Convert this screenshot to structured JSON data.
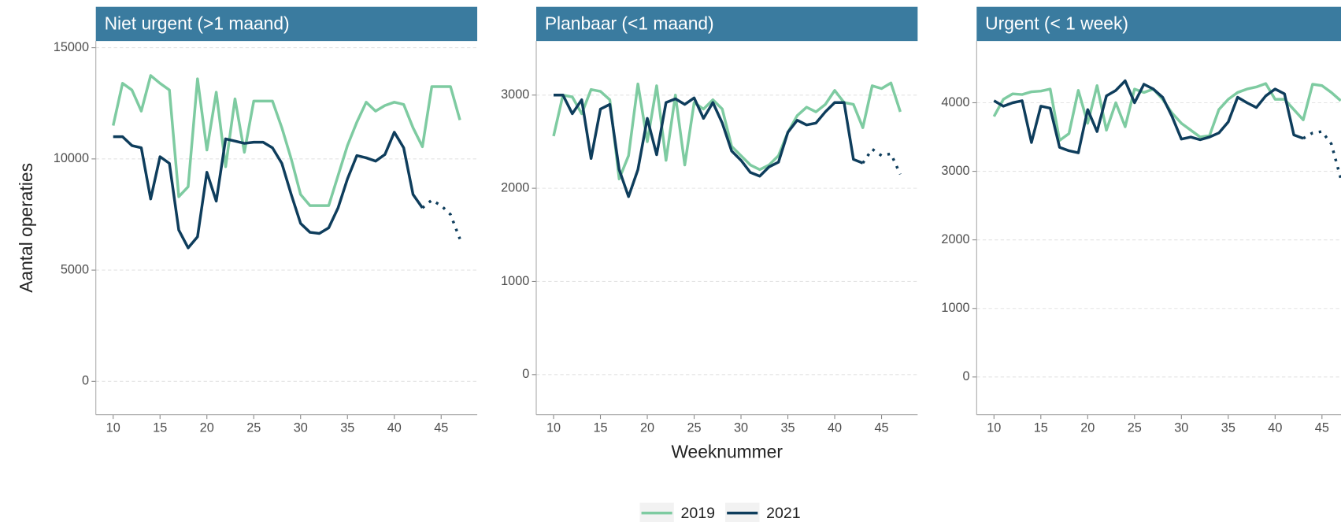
{
  "chart_data": [
    {
      "type": "line",
      "title": "Niet urgent (>1 maand)",
      "ylabel": "Aantal operaties",
      "x": [
        10,
        11,
        12,
        13,
        14,
        15,
        16,
        17,
        18,
        19,
        20,
        21,
        22,
        23,
        24,
        25,
        26,
        27,
        28,
        29,
        30,
        31,
        32,
        33,
        34,
        35,
        36,
        37,
        38,
        39,
        40,
        41,
        42,
        43,
        44,
        45,
        46,
        47
      ],
      "xlim": [
        8.15,
        48.85
      ],
      "xticks": [
        10,
        15,
        20,
        25,
        30,
        35,
        40,
        45
      ],
      "ylim": [
        -1500,
        15300
      ],
      "yticks": [
        0,
        5000,
        10000,
        15000
      ],
      "grid": true,
      "legend": "bottom",
      "series": [
        {
          "name": "2019",
          "color": "#7ecba1",
          "values": [
            11500,
            13400,
            13100,
            12150,
            13750,
            13400,
            13100,
            8300,
            8750,
            13600,
            10400,
            13000,
            9650,
            12700,
            10300,
            12600,
            12600,
            12600,
            11400,
            10000,
            8400,
            7900,
            7900,
            7900,
            9250,
            10600,
            11650,
            12550,
            12150,
            12400,
            12550,
            12450,
            11400,
            10550,
            13250,
            13250,
            13250,
            11750
          ]
        },
        {
          "name": "2021",
          "color": "#0e3d5c",
          "values": [
            11000,
            11000,
            10600,
            10500,
            8200,
            10100,
            9800,
            6800,
            6000,
            6500,
            9400,
            8100,
            10900,
            10800,
            10700,
            10750,
            10750,
            10500,
            9800,
            8400,
            7100,
            6700,
            6650,
            6900,
            7800,
            9100,
            10150,
            10050,
            9900,
            10200,
            11200,
            10500,
            8400,
            7800,
            null,
            null,
            null,
            null
          ],
          "projected_values": [
            null,
            null,
            null,
            null,
            null,
            null,
            null,
            null,
            null,
            null,
            null,
            null,
            null,
            null,
            null,
            null,
            null,
            null,
            null,
            null,
            null,
            null,
            null,
            null,
            null,
            null,
            null,
            null,
            null,
            null,
            null,
            null,
            null,
            7800,
            8150,
            7900,
            7500,
            6400
          ]
        }
      ]
    },
    {
      "type": "line",
      "title": "Planbaar (<1 maand)",
      "xlabel": "Weeknummer",
      "x": [
        10,
        11,
        12,
        13,
        14,
        15,
        16,
        17,
        18,
        19,
        20,
        21,
        22,
        23,
        24,
        25,
        26,
        27,
        28,
        29,
        30,
        31,
        32,
        33,
        34,
        35,
        36,
        37,
        38,
        39,
        40,
        41,
        42,
        43,
        44,
        45,
        46,
        47
      ],
      "xlim": [
        8.15,
        48.85
      ],
      "xticks": [
        10,
        15,
        20,
        25,
        30,
        35,
        40,
        45
      ],
      "ylim": [
        -430,
        3580
      ],
      "yticks": [
        0,
        1000,
        2000,
        3000
      ],
      "grid": true,
      "series": [
        {
          "color": "#7ecba1",
          "values": [
            2560,
            3000,
            2980,
            2800,
            3060,
            3040,
            2950,
            2100,
            2350,
            3120,
            2500,
            3100,
            2300,
            3000,
            2250,
            2920,
            2850,
            2950,
            2850,
            2450,
            2350,
            2250,
            2200,
            2250,
            2350,
            2600,
            2780,
            2870,
            2820,
            2900,
            3050,
            2920,
            2900,
            2650,
            3100,
            3070,
            3130,
            2820
          ]
        },
        {
          "color": "#0e3d5c",
          "values": [
            3000,
            3000,
            2800,
            2950,
            2320,
            2850,
            2900,
            2200,
            1910,
            2200,
            2750,
            2360,
            2920,
            2960,
            2900,
            2970,
            2750,
            2920,
            2700,
            2400,
            2300,
            2170,
            2130,
            2230,
            2280,
            2600,
            2730,
            2680,
            2700,
            2820,
            2920,
            2920,
            2310,
            2270,
            null,
            null,
            null,
            null
          ],
          "projected_values": [
            null,
            null,
            null,
            null,
            null,
            null,
            null,
            null,
            null,
            null,
            null,
            null,
            null,
            null,
            null,
            null,
            null,
            null,
            null,
            null,
            null,
            null,
            null,
            null,
            null,
            null,
            null,
            null,
            null,
            null,
            null,
            null,
            null,
            2270,
            2420,
            2350,
            2370,
            2150
          ]
        }
      ]
    },
    {
      "type": "line",
      "title": "Urgent (< 1 week)",
      "x": [
        10,
        11,
        12,
        13,
        14,
        15,
        16,
        17,
        18,
        19,
        20,
        21,
        22,
        23,
        24,
        25,
        26,
        27,
        28,
        29,
        30,
        31,
        32,
        33,
        34,
        35,
        36,
        37,
        38,
        39,
        40,
        41,
        42,
        43,
        44,
        45,
        46,
        47
      ],
      "xlim": [
        8.15,
        48.85
      ],
      "xticks": [
        10,
        15,
        20,
        25,
        30,
        35,
        40,
        45
      ],
      "ylim": [
        -550,
        4900
      ],
      "yticks": [
        0,
        1000,
        2000,
        3000,
        4000
      ],
      "grid": true,
      "series": [
        {
          "color": "#7ecba1",
          "values": [
            3800,
            4050,
            4130,
            4120,
            4160,
            4170,
            4200,
            3450,
            3550,
            4180,
            3700,
            4250,
            3600,
            4000,
            3650,
            4200,
            4150,
            4200,
            4050,
            3850,
            3700,
            3600,
            3500,
            3520,
            3900,
            4050,
            4150,
            4200,
            4230,
            4280,
            4050,
            4050,
            3900,
            3750,
            4270,
            4250,
            4150,
            4030
          ]
        },
        {
          "color": "#0e3d5c",
          "values": [
            4030,
            3950,
            4000,
            4030,
            3420,
            3950,
            3920,
            3350,
            3300,
            3270,
            3900,
            3580,
            4100,
            4180,
            4320,
            4000,
            4270,
            4200,
            4080,
            3800,
            3470,
            3500,
            3460,
            3500,
            3560,
            3720,
            4080,
            4000,
            3930,
            4100,
            4200,
            4130,
            3530,
            3480,
            null,
            null,
            null,
            null
          ],
          "projected_values": [
            null,
            null,
            null,
            null,
            null,
            null,
            null,
            null,
            null,
            null,
            null,
            null,
            null,
            null,
            null,
            null,
            null,
            null,
            null,
            null,
            null,
            null,
            null,
            null,
            null,
            null,
            null,
            null,
            null,
            null,
            null,
            null,
            null,
            3480,
            3560,
            3580,
            3400,
            2900
          ]
        }
      ]
    }
  ]
}
